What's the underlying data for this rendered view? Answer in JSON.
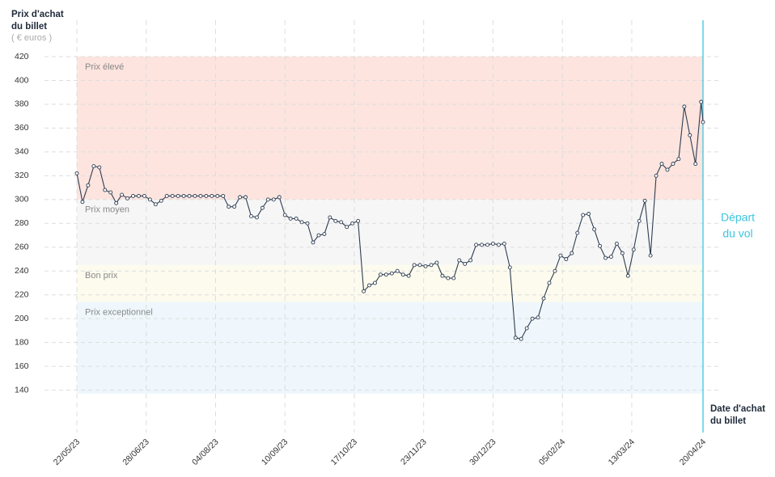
{
  "chart_data": {
    "type": "line",
    "y_axis_label": [
      "Prix d'achat",
      "du billet"
    ],
    "y_unit": "( € euros )",
    "x_axis_label": [
      "Date d'achat",
      "du billet"
    ],
    "event_label": [
      "Départ",
      "du vol"
    ],
    "event_color": "#3cc6e0",
    "bands": [
      {
        "name": "Prix élevé",
        "from": 300,
        "to": 420,
        "color": "#fde4df"
      },
      {
        "name": "Prix moyen",
        "from": 245,
        "to": 300,
        "color": "#f6f6f6"
      },
      {
        "name": "Bon prix",
        "from": 214,
        "to": 245,
        "color": "#fdfbee"
      },
      {
        "name": "Prix exceptionnel",
        "from": 137,
        "to": 214,
        "color": "#eff7fc"
      }
    ],
    "ylim": [
      137,
      420
    ],
    "yticks": [
      140,
      160,
      180,
      200,
      220,
      240,
      260,
      280,
      300,
      320,
      340,
      360,
      380,
      400,
      420
    ],
    "xlim": [
      "2023-05-22",
      "2024-04-20"
    ],
    "xticks": [
      {
        "value": "2023-05-22",
        "label": "22/05/23"
      },
      {
        "value": "2023-06-28",
        "label": "28/06/23"
      },
      {
        "value": "2023-08-04",
        "label": "04/08/23"
      },
      {
        "value": "2023-09-10",
        "label": "10/09/23"
      },
      {
        "value": "2023-10-17",
        "label": "17/10/23"
      },
      {
        "value": "2023-11-23",
        "label": "23/11/23"
      },
      {
        "value": "2023-12-30",
        "label": "30/12/23"
      },
      {
        "value": "2024-02-05",
        "label": "05/02/24"
      },
      {
        "value": "2024-03-13",
        "label": "13/03/24"
      },
      {
        "value": "2024-04-20",
        "label": "20/04/24"
      }
    ],
    "grid": true,
    "series": [
      {
        "name": "Prix",
        "color": "#2e3d52",
        "x": [
          "2023-05-22",
          "2023-05-25",
          "2023-05-28",
          "2023-05-31",
          "2023-06-03",
          "2023-06-06",
          "2023-06-09",
          "2023-06-12",
          "2023-06-15",
          "2023-06-18",
          "2023-06-21",
          "2023-06-24",
          "2023-06-27",
          "2023-06-30",
          "2023-07-03",
          "2023-07-06",
          "2023-07-09",
          "2023-07-12",
          "2023-07-15",
          "2023-07-18",
          "2023-07-21",
          "2023-07-24",
          "2023-07-27",
          "2023-07-30",
          "2023-08-02",
          "2023-08-05",
          "2023-08-08",
          "2023-08-11",
          "2023-08-14",
          "2023-08-17",
          "2023-08-20",
          "2023-08-23",
          "2023-08-26",
          "2023-08-29",
          "2023-09-01",
          "2023-09-04",
          "2023-09-07",
          "2023-09-10",
          "2023-09-13",
          "2023-09-16",
          "2023-09-19",
          "2023-09-22",
          "2023-09-25",
          "2023-09-28",
          "2023-10-01",
          "2023-10-04",
          "2023-10-07",
          "2023-10-10",
          "2023-10-13",
          "2023-10-16",
          "2023-10-19",
          "2023-10-22",
          "2023-10-25",
          "2023-10-28",
          "2023-10-31",
          "2023-11-03",
          "2023-11-06",
          "2023-11-09",
          "2023-11-12",
          "2023-11-15",
          "2023-11-18",
          "2023-11-21",
          "2023-11-24",
          "2023-11-27",
          "2023-11-30",
          "2023-12-03",
          "2023-12-06",
          "2023-12-09",
          "2023-12-12",
          "2023-12-15",
          "2023-12-18",
          "2023-12-21",
          "2023-12-24",
          "2023-12-27",
          "2023-12-30",
          "2024-01-02",
          "2024-01-05",
          "2024-01-08",
          "2024-01-11",
          "2024-01-14",
          "2024-01-17",
          "2024-01-20",
          "2024-01-23",
          "2024-01-26",
          "2024-01-29",
          "2024-02-01",
          "2024-02-04",
          "2024-02-07",
          "2024-02-10",
          "2024-02-13",
          "2024-02-16",
          "2024-02-19",
          "2024-02-22",
          "2024-02-25",
          "2024-02-28",
          "2024-03-02",
          "2024-03-05",
          "2024-03-08",
          "2024-03-11",
          "2024-03-14",
          "2024-03-17",
          "2024-03-20",
          "2024-03-23",
          "2024-03-26",
          "2024-03-29",
          "2024-04-01",
          "2024-04-04",
          "2024-04-07",
          "2024-04-10",
          "2024-04-13",
          "2024-04-16",
          "2024-04-19",
          "2024-04-20"
        ],
        "values": [
          322,
          298,
          312,
          328,
          327,
          308,
          306,
          297,
          304,
          301,
          303,
          303,
          303,
          300,
          296,
          299,
          303,
          303,
          303,
          303,
          303,
          303,
          303,
          303,
          303,
          303,
          303,
          294,
          294,
          302,
          302,
          286,
          285,
          293,
          300,
          300,
          302,
          287,
          284,
          284,
          281,
          280,
          264,
          270,
          271,
          285,
          282,
          281,
          277,
          280,
          282,
          223,
          228,
          230,
          237,
          237,
          238,
          240,
          237,
          236,
          245,
          245,
          244,
          245,
          247,
          236,
          234,
          234,
          249,
          246,
          249,
          262,
          262,
          262,
          263,
          262,
          263,
          243,
          184,
          183,
          192,
          200,
          201,
          217,
          230,
          240,
          253,
          250,
          255,
          272,
          287,
          288,
          275,
          261,
          251,
          252,
          263,
          255,
          236,
          258,
          282,
          299,
          253,
          320,
          330,
          325,
          330,
          334,
          378,
          354,
          330,
          382,
          365
        ]
      }
    ]
  }
}
